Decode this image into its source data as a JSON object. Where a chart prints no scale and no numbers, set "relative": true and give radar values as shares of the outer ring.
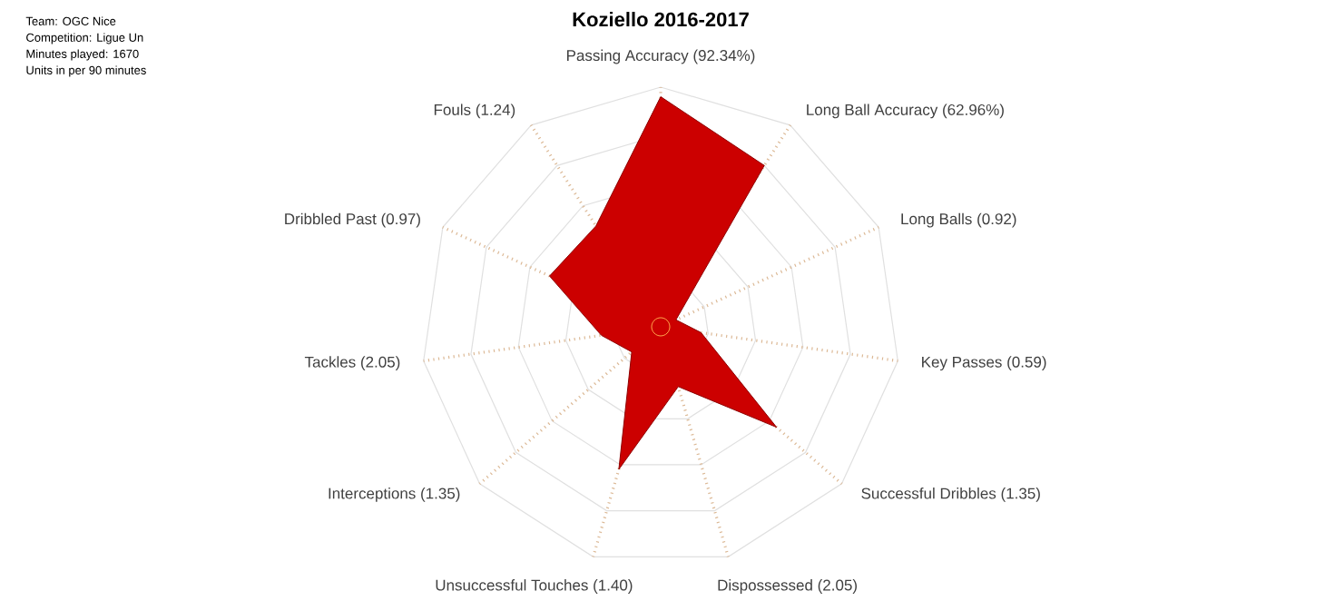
{
  "chart_data": {
    "type": "radar",
    "title": "Koziello 2016-2017",
    "relative": true,
    "grid": true,
    "annotations": [
      "Team: OGC Nice",
      "Competition: Ligue Un",
      "Minutes played: 1670",
      "Units in per 90 minutes"
    ],
    "categories": [
      "Passing Accuracy (92.34%)",
      "Long Ball Accuracy (62.96%)",
      "Long Balls (0.92)",
      "Key Passes (0.59)",
      "Successful Dribbles (1.35)",
      "Dispossessed (2.05)",
      "Unsuccessful Touches (1.40)",
      "Interceptions (1.35)",
      "Tackles (2.05)",
      "Dribbled Past (0.97)",
      "Fouls (1.24)"
    ],
    "series": [
      {
        "color": "#cc0000",
        "values": [
          0.96,
          0.8,
          0.07,
          0.17,
          0.64,
          0.26,
          0.62,
          0.16,
          0.25,
          0.51,
          0.5
        ]
      }
    ]
  }
}
